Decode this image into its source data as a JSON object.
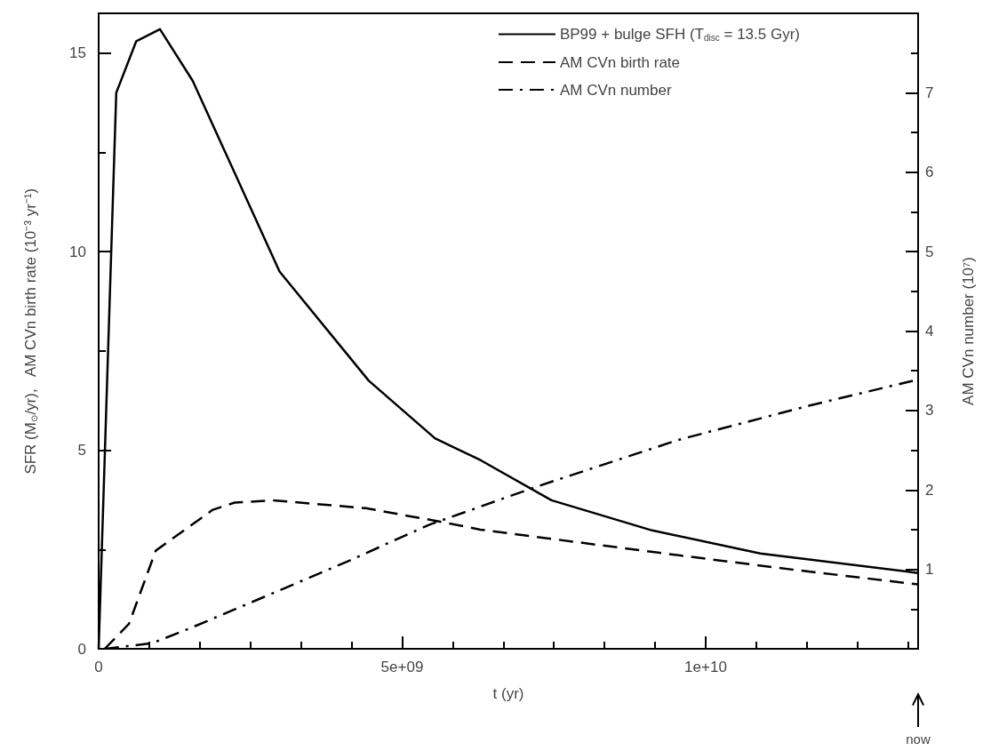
{
  "chart_data": {
    "type": "line",
    "xlabel": "t (yr)",
    "ylabel": "SFR (M$_{⊙}$/yr),   AM CVn birth rate (10⁻³ yr⁻¹)",
    "y2label": "AM CVn number (10⁷)",
    "xlim": [
      0,
      13500000000
    ],
    "xticks": [
      0,
      {
        "value": 5000000000,
        "label": "5e+09"
      },
      {
        "value": 10000000000,
        "label": "1e+10"
      }
    ],
    "ylim": [
      0,
      16
    ],
    "yticks": [
      0,
      5,
      10,
      15
    ],
    "y2lim": [
      0,
      8
    ],
    "y2ticks": [
      1,
      2,
      3,
      4,
      5,
      6,
      7
    ],
    "grid": false,
    "legend": "top right",
    "marker": "none",
    "series": [
      {
        "name": "BP99 + bulge SFH (T$_{disc}$ = 13.5 Gyr)",
        "color": "#000000",
        "line_style": "solid",
        "x": [
          0,
          290000000,
          620000000,
          1010000000,
          1550000000,
          2980000000,
          4450000000,
          5540000000,
          6290000000,
          7460000000,
          9120000000,
          10900000000,
          13500000000
        ],
        "values": [
          0,
          14.0,
          15.3,
          15.6,
          14.3,
          9.5,
          6.75,
          5.3,
          4.75,
          3.74,
          2.98,
          2.4,
          1.91
        ]
      },
      {
        "name": "AM CVn birth rate",
        "color": "#000000",
        "line_style": "dashed",
        "x": [
          100000000,
          500000000,
          940000000,
          1880000000,
          2240000000,
          2870000000,
          4400000000,
          5700000000,
          6290000000,
          9220000000,
          11400000000,
          13500000000
        ],
        "values": [
          0,
          0.63,
          2.47,
          3.5,
          3.68,
          3.74,
          3.54,
          3.18,
          3.0,
          2.42,
          2.0,
          1.62
        ]
      },
      {
        "name": "AM CVn number",
        "color": "#000000",
        "line_style": "dashdot",
        "axis": "y2",
        "x": [
          100000000,
          880000000,
          1510000000,
          2870000000,
          4130000000,
          5440000000,
          7210000000,
          9550000000,
          11700000000,
          13500000000
        ],
        "values": [
          0,
          0.07,
          0.26,
          0.7,
          1.11,
          1.56,
          2.04,
          2.63,
          3.06,
          3.39
        ]
      }
    ],
    "annotations": [
      "now"
    ]
  }
}
